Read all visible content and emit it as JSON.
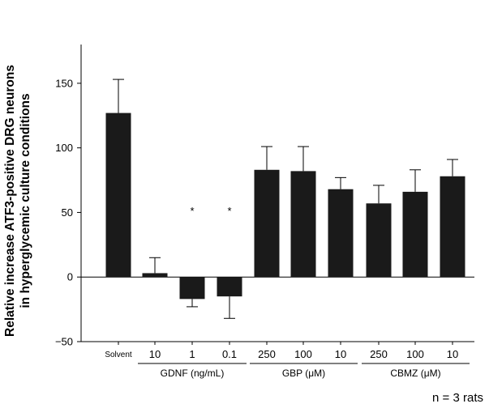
{
  "chart_data": {
    "type": "bar",
    "ylabel_line1": "Relative increase ATF3-positive DRG neurons",
    "ylabel_line2": "in hyperglycemic culture conditions",
    "ylim": [
      -50,
      180
    ],
    "yticks": [
      -50,
      0,
      50,
      100,
      150
    ],
    "grid": false,
    "categories": [
      "Solvent",
      "10",
      "1",
      "0.1",
      "250",
      "100",
      "10",
      "250",
      "100",
      "10"
    ],
    "values": [
      127,
      3,
      -17,
      -15,
      83,
      82,
      68,
      57,
      66,
      78
    ],
    "error": [
      26,
      12,
      6,
      17,
      18,
      19,
      9,
      14,
      17,
      13
    ],
    "significance": [
      "",
      "",
      "*",
      "*",
      "",
      "",
      "",
      "",
      "",
      ""
    ],
    "groups": [
      {
        "label": "GDNF (ng/mL)",
        "first": 1,
        "last": 3
      },
      {
        "label": "GBP (μM)",
        "first": 4,
        "last": 6
      },
      {
        "label": "CBMZ (μM)",
        "first": 7,
        "last": 9
      }
    ],
    "bar_color": "#1a1a1a"
  },
  "note": "n = 3 rats"
}
